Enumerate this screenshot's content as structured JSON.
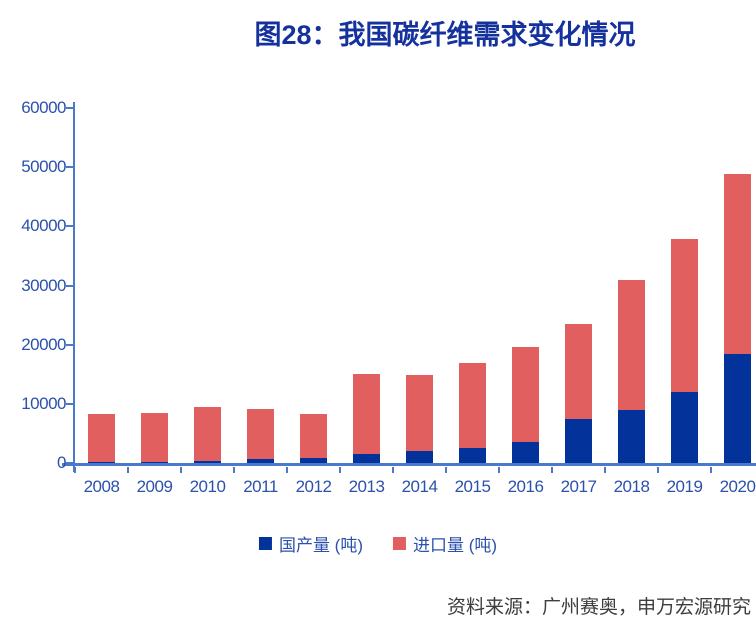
{
  "title": "图28：我国碳纤维需求变化情况",
  "source": "资料来源：广州赛奥，申万宏源研究",
  "colors": {
    "title_color": "#14319d",
    "axis_color": "#4a78cb",
    "tick_label_color": "#2c51ac",
    "legend_text_color": "#2c51ac",
    "source_color": "#3d3d3d",
    "domestic_bar": "#03339a",
    "import_bar": "#e25f5f"
  },
  "chart_data": {
    "type": "bar",
    "stacked": true,
    "title": "图28：我国碳纤维需求变化情况",
    "xlabel": "",
    "ylabel": "",
    "categories": [
      "2008",
      "2009",
      "2010",
      "2011",
      "2012",
      "2013",
      "2014",
      "2015",
      "2016",
      "2017",
      "2018",
      "2019",
      "2020"
    ],
    "series": [
      {
        "name": "国产量 (吨)",
        "color": "#03339a",
        "values": [
          100,
          200,
          400,
          700,
          850,
          1500,
          2000,
          2500,
          3600,
          7400,
          9000,
          12000,
          18400
        ]
      },
      {
        "name": "进口量 (吨)",
        "color": "#e25f5f",
        "values": [
          8100,
          8300,
          9100,
          8500,
          7450,
          13600,
          12900,
          14400,
          16000,
          16100,
          22000,
          25800,
          30400
        ]
      }
    ],
    "totals": [
      8200,
      8500,
      9500,
      9200,
      8300,
      15100,
      14900,
      16900,
      19600,
      23500,
      31000,
      37800,
      48800
    ],
    "ylim": [
      0,
      60000
    ],
    "yticks": [
      0,
      10000,
      20000,
      30000,
      40000,
      50000,
      60000
    ],
    "grid": false,
    "legend_position": "bottom"
  }
}
